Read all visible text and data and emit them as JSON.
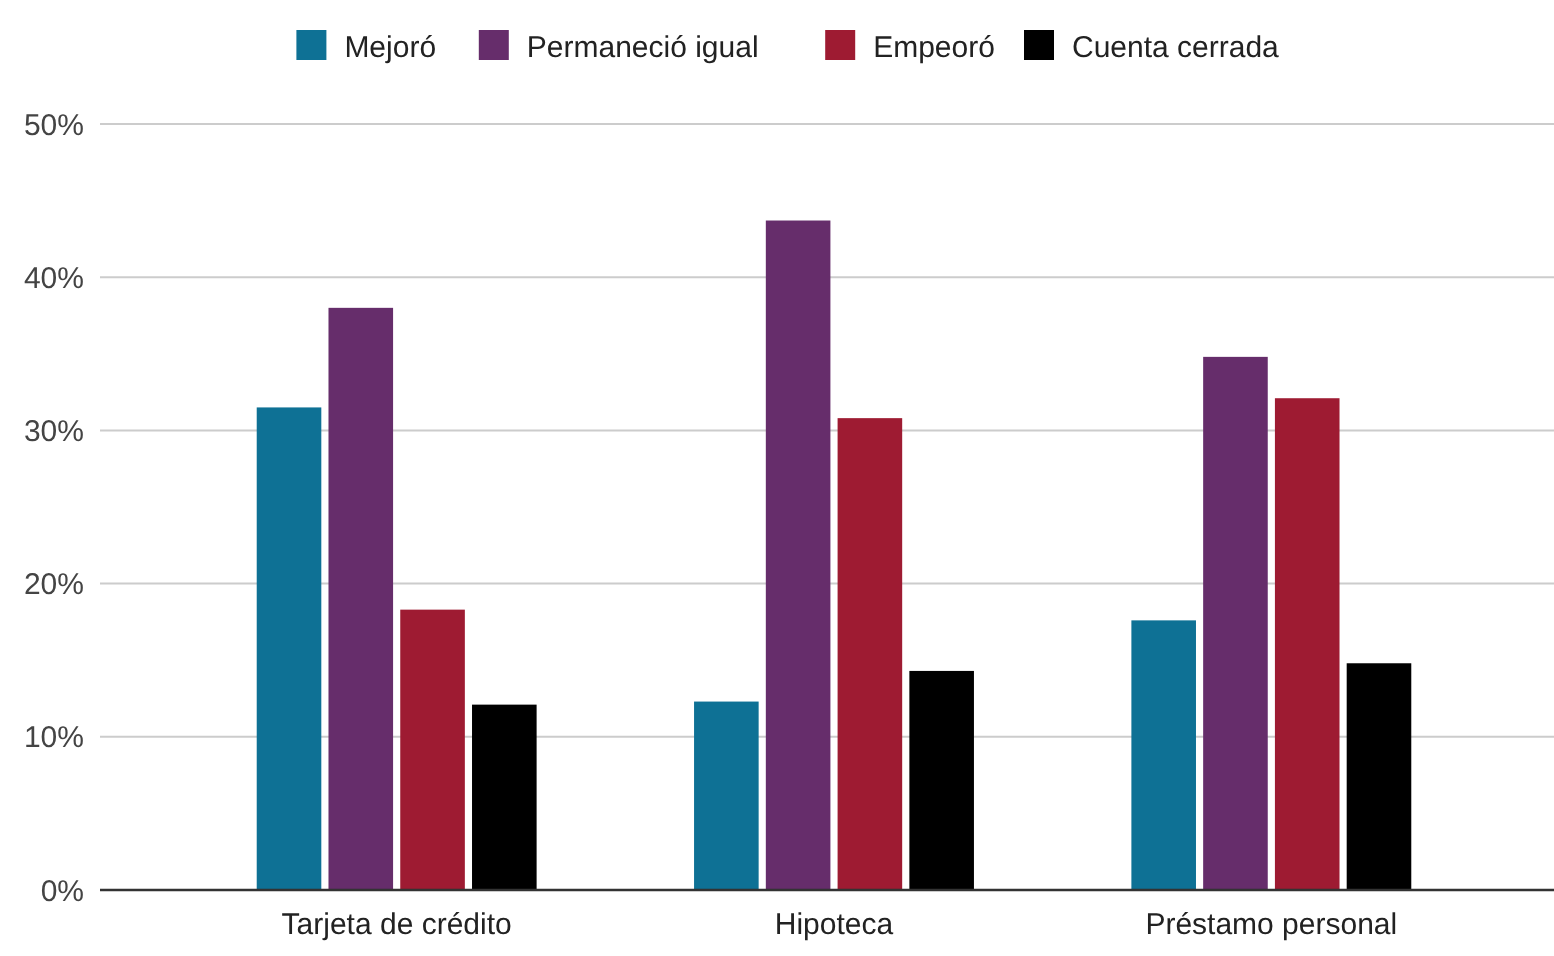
{
  "chart_data": {
    "type": "bar",
    "categories": [
      "Tarjeta de crédito",
      "Hipoteca",
      "Préstamo personal"
    ],
    "series": [
      {
        "name": "Mejoró",
        "color": "#0e7195",
        "values": [
          31.5,
          12.3,
          17.6
        ]
      },
      {
        "name": "Permaneció igual",
        "color": "#662d6b",
        "values": [
          38.0,
          43.7,
          34.8
        ]
      },
      {
        "name": "Empeoró",
        "color": "#9e1b32",
        "values": [
          18.3,
          30.8,
          32.1
        ]
      },
      {
        "name": "Cuenta cerrada",
        "color": "#000000",
        "values": [
          12.1,
          14.3,
          14.8
        ]
      }
    ],
    "ylim": [
      0,
      50
    ],
    "yticks": [
      {
        "value": 0,
        "label": "0%"
      },
      {
        "value": 10,
        "label": "10%"
      },
      {
        "value": 20,
        "label": "20%"
      },
      {
        "value": 30,
        "label": "30%"
      },
      {
        "value": 40,
        "label": "40%"
      },
      {
        "value": 50,
        "label": "50%"
      }
    ],
    "grid": "y",
    "legend": "top"
  }
}
